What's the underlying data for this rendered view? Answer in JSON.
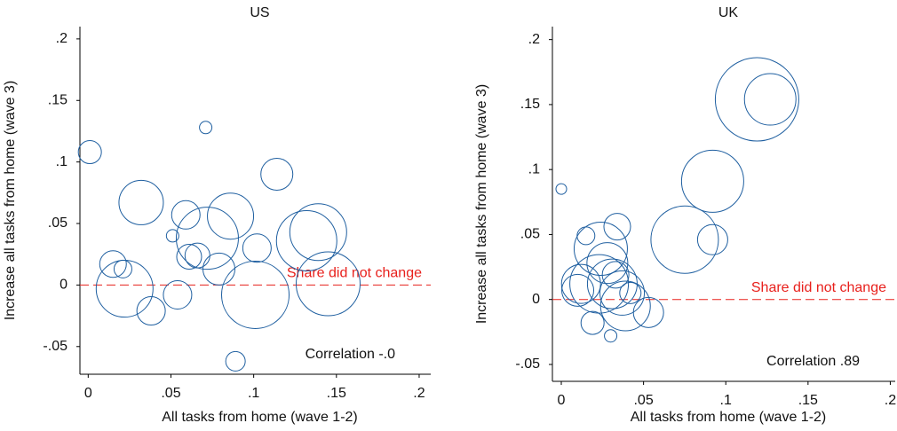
{
  "chart_data": [
    {
      "type": "scatter",
      "title": "US",
      "x_label": "All tasks from home (wave 1-2)",
      "y_label": "Increase all tasks from home (wave 3)",
      "x": [
        0.001,
        0.071,
        0.114,
        0.032,
        0.059,
        0.086,
        0.051,
        0.072,
        0.102,
        0.132,
        0.139,
        0.015,
        0.021,
        0.061,
        0.066,
        0.079,
        0.022,
        0.054,
        0.038,
        0.101,
        0.145,
        0.089
      ],
      "y": [
        0.108,
        0.128,
        0.09,
        0.067,
        0.057,
        0.056,
        0.04,
        0.038,
        0.03,
        0.036,
        0.043,
        0.017,
        0.013,
        0.023,
        0.024,
        0.013,
        -0.003,
        -0.008,
        -0.021,
        -0.008,
        0.001,
        -0.062
      ],
      "sizes": [
        13,
        7,
        18,
        25,
        16,
        26,
        7,
        35,
        16,
        34,
        32,
        15,
        10,
        14,
        14,
        18,
        32,
        16,
        16,
        38,
        36,
        11
      ],
      "color": "#1f5fa0",
      "xlim": [
        -0.005,
        0.207
      ],
      "ylim": [
        -0.0725,
        0.21
      ],
      "xticks": [
        0,
        {
          "value": 0.05,
          "label": ".05"
        },
        {
          "value": 0.1,
          "label": ".1"
        },
        {
          "value": 0.15,
          "label": ".15"
        },
        {
          "value": 0.2,
          "label": ".2"
        }
      ],
      "yticks": [
        {
          "value": -0.05,
          "label": "-.05"
        },
        0,
        {
          "value": 0.05,
          "label": ".05"
        },
        {
          "value": 0.1,
          "label": ".1"
        },
        {
          "value": 0.15,
          "label": ".15"
        },
        {
          "value": 0.2,
          "label": ".2"
        }
      ],
      "reference_line": {
        "value": 0,
        "label": "Share did not change",
        "color": "#e8201c"
      },
      "annotation": "Correlation -.0"
    },
    {
      "type": "scatter",
      "title": "UK",
      "x_label": "All tasks from home (wave 1-2)",
      "y_label": "Increase all tasks from home (wave 3)",
      "x": [
        0,
        0.092,
        0.092,
        0.075,
        0.119,
        0.127,
        0.034,
        0.015,
        0.024,
        0.028,
        0.031,
        0.023,
        0.012,
        0.037,
        0.039,
        0.042,
        0.053,
        0.019,
        0.03,
        0.01,
        0.033
      ],
      "y": [
        0.085,
        0.091,
        0.046,
        0.046,
        0.154,
        0.154,
        0.056,
        0.049,
        0.039,
        0.028,
        0.012,
        0.012,
        0.012,
        0.005,
        -0.005,
        0.005,
        -0.01,
        -0.018,
        -0.028,
        0.007,
        0.019
      ],
      "sizes": [
        6,
        35,
        17,
        38,
        47,
        29,
        15,
        10,
        30,
        23,
        28,
        33,
        22,
        25,
        28,
        12,
        17,
        13,
        7,
        18,
        15
      ],
      "color": "#1f5fa0",
      "xlim": [
        -0.0054,
        0.203
      ],
      "ylim": [
        -0.063,
        0.21
      ],
      "xticks": [
        0,
        {
          "value": 0.05,
          "label": ".05"
        },
        {
          "value": 0.1,
          "label": ".1"
        },
        {
          "value": 0.15,
          "label": ".15"
        },
        {
          "value": 0.2,
          "label": ".2"
        }
      ],
      "yticks": [
        {
          "value": -0.05,
          "label": "-.05"
        },
        0,
        {
          "value": 0.05,
          "label": ".05"
        },
        {
          "value": 0.1,
          "label": ".1"
        },
        {
          "value": 0.15,
          "label": ".15"
        },
        {
          "value": 0.2,
          "label": ".2"
        }
      ],
      "reference_line": {
        "value": 0,
        "label": "Share did not change",
        "color": "#e8201c"
      },
      "annotation": "Correlation .89"
    }
  ]
}
